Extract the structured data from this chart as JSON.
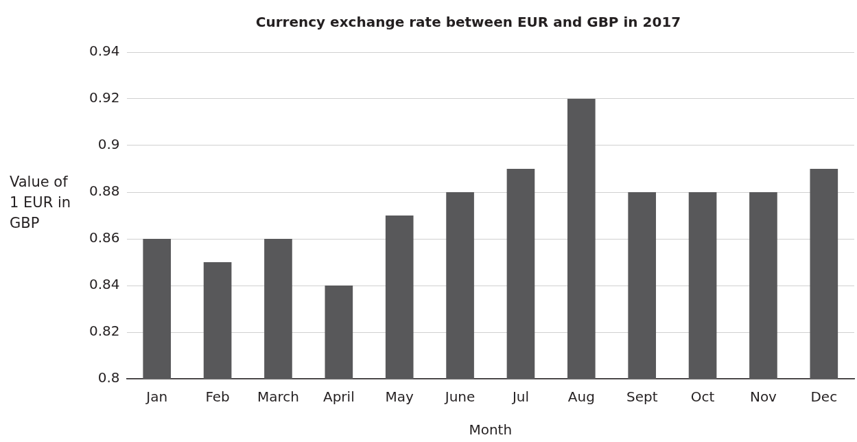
{
  "chart_data": {
    "type": "bar",
    "title": "Currency exchange rate between EUR and GBP in 2017",
    "xlabel": "Month",
    "ylabel": "Value of 1 EUR in GBP",
    "categories": [
      "Jan",
      "Feb",
      "March",
      "April",
      "May",
      "June",
      "Jul",
      "Aug",
      "Sept",
      "Oct",
      "Nov",
      "Dec"
    ],
    "values": [
      0.86,
      0.85,
      0.86,
      0.84,
      0.87,
      0.88,
      0.89,
      0.92,
      0.88,
      0.88,
      0.88,
      0.89
    ],
    "color": "#58585a",
    "ylim": [
      0.8,
      0.94
    ],
    "yticks": [
      0.8,
      0.82,
      0.84,
      0.86,
      0.88,
      0.9,
      0.92,
      0.94
    ],
    "grid": "y",
    "legend": false
  }
}
